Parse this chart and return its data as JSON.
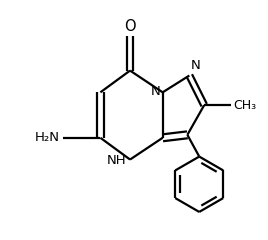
{
  "bg_color": "#ffffff",
  "line_color": "#000000",
  "line_width": 1.6,
  "font_size": 9.5,
  "figsize": [
    2.68,
    2.4
  ],
  "dpi": 100,
  "xlim": [
    0,
    268
  ],
  "ylim": [
    0,
    240
  ]
}
